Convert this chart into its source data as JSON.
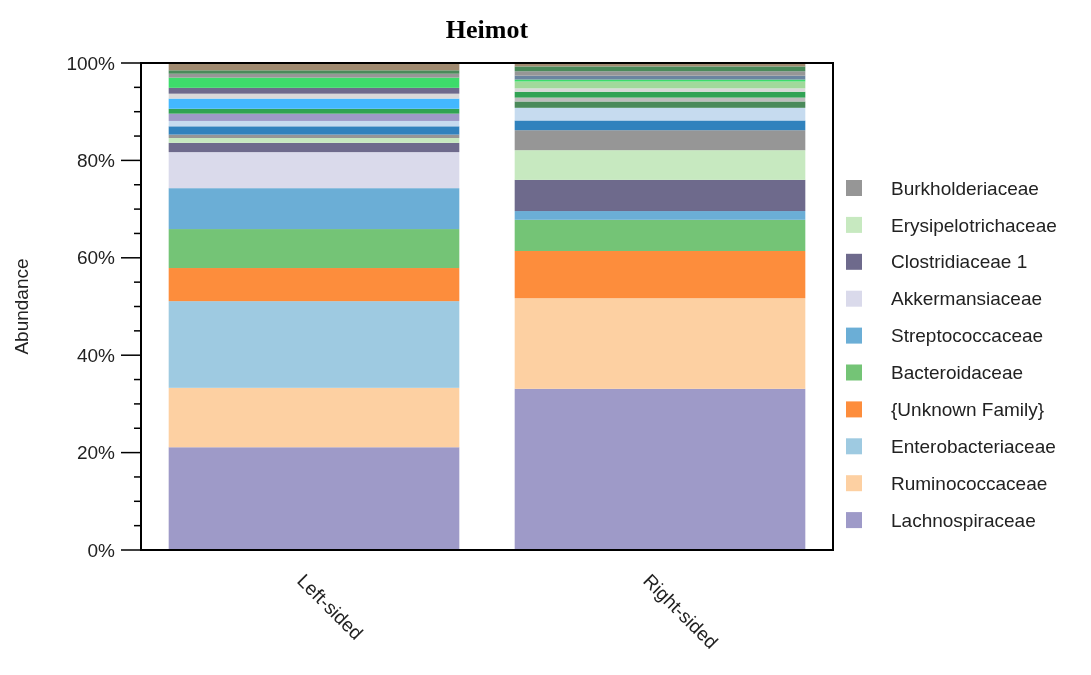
{
  "chart_data": {
    "type": "bar",
    "stacked": true,
    "title": "Heimot",
    "ylabel": "Abundance",
    "categories": [
      "Left-sided",
      "Right-sided"
    ],
    "ylim": [
      0,
      100
    ],
    "yticks": [
      {
        "value": 0,
        "label": "0%"
      },
      {
        "value": 5,
        "label": null
      },
      {
        "value": 10,
        "label": null
      },
      {
        "value": 15,
        "label": null
      },
      {
        "value": 20,
        "label": "20%"
      },
      {
        "value": 25,
        "label": null
      },
      {
        "value": 30,
        "label": null
      },
      {
        "value": 35,
        "label": null
      },
      {
        "value": 40,
        "label": "40%"
      },
      {
        "value": 45,
        "label": null
      },
      {
        "value": 50,
        "label": null
      },
      {
        "value": 55,
        "label": null
      },
      {
        "value": 60,
        "label": "60%"
      },
      {
        "value": 65,
        "label": null
      },
      {
        "value": 70,
        "label": null
      },
      {
        "value": 75,
        "label": null
      },
      {
        "value": 80,
        "label": "80%"
      },
      {
        "value": 85,
        "label": null
      },
      {
        "value": 90,
        "label": null
      },
      {
        "value": 95,
        "label": null
      },
      {
        "value": 100,
        "label": "100%"
      }
    ],
    "legend": "right",
    "grid": false,
    "series": [
      {
        "name": "Lachnospiraceae",
        "color": "#9e9ac8",
        "values": [
          21.1,
          33.1
        ]
      },
      {
        "name": "Ruminococcaceae",
        "color": "#fdd0a2",
        "values": [
          12.2,
          18.6
        ]
      },
      {
        "name": "Enterobacteriaceae",
        "color": "#9ecae1",
        "values": [
          17.8,
          0
        ]
      },
      {
        "name": "{Unknown Family}",
        "color": "#fd8d3c",
        "values": [
          6.8,
          9.7
        ]
      },
      {
        "name": "Bacteroidaceae",
        "color": "#74c476",
        "values": [
          8.0,
          6.4
        ]
      },
      {
        "name": "Streptococcaceae",
        "color": "#6baed6",
        "values": [
          8.4,
          1.8
        ]
      },
      {
        "name": "Akkermansiaceae",
        "color": "#dadaeb",
        "values": [
          7.4,
          0
        ]
      },
      {
        "name": "Clostridiaceae 1",
        "color": "#6e6a8c",
        "values": [
          1.9,
          6.4
        ]
      },
      {
        "name": "Erysipelotrichaceae",
        "color": "#c7e9c0",
        "values": [
          1.0,
          6.1
        ]
      },
      {
        "name": "Burkholderiaceae",
        "color": "#969696",
        "values": [
          0.7,
          4.1
        ]
      },
      {
        "colors": [
          "#3182bd",
          "#3182bd"
        ],
        "values": [
          1.7,
          2.0
        ]
      },
      {
        "colors": [
          "#c6dbef",
          "#c6dbef"
        ],
        "values": [
          1.1,
          2.6
        ]
      },
      {
        "colors": [
          "#9e9ac8",
          "#4a8a5a"
        ],
        "values": [
          1.5,
          1.3
        ]
      },
      {
        "colors": [
          "#31a354",
          "#bdbdbd"
        ],
        "values": [
          1.0,
          0.8
        ]
      },
      {
        "colors": [
          "#43b8ff",
          "#31a354"
        ],
        "values": [
          2.1,
          1.2
        ]
      },
      {
        "colors": [
          "#d9d9d9",
          "#d9d9d9"
        ],
        "values": [
          1.0,
          0.7
        ]
      },
      {
        "colors": [
          "#6e6a8c",
          "#a1d99b"
        ],
        "values": [
          1.2,
          1.4
        ]
      },
      {
        "colors": [
          "#3ddc6b",
          "#3ddc6b"
        ],
        "values": [
          2.1,
          0.4
        ]
      },
      {
        "colors": [
          "#969696",
          "#6b85a0"
        ],
        "values": [
          0.8,
          0.8
        ]
      },
      {
        "colors": [
          "#4a8a5a",
          "#969696"
        ],
        "values": [
          0.7,
          0.9
        ]
      },
      {
        "colors": [
          "#a08a70",
          "#4a8a5a"
        ],
        "values": [
          1.5,
          1.0
        ]
      },
      {
        "colors": [
          "#b0906a",
          "#a08a70"
        ],
        "values": [
          0,
          0.8
        ]
      }
    ]
  }
}
